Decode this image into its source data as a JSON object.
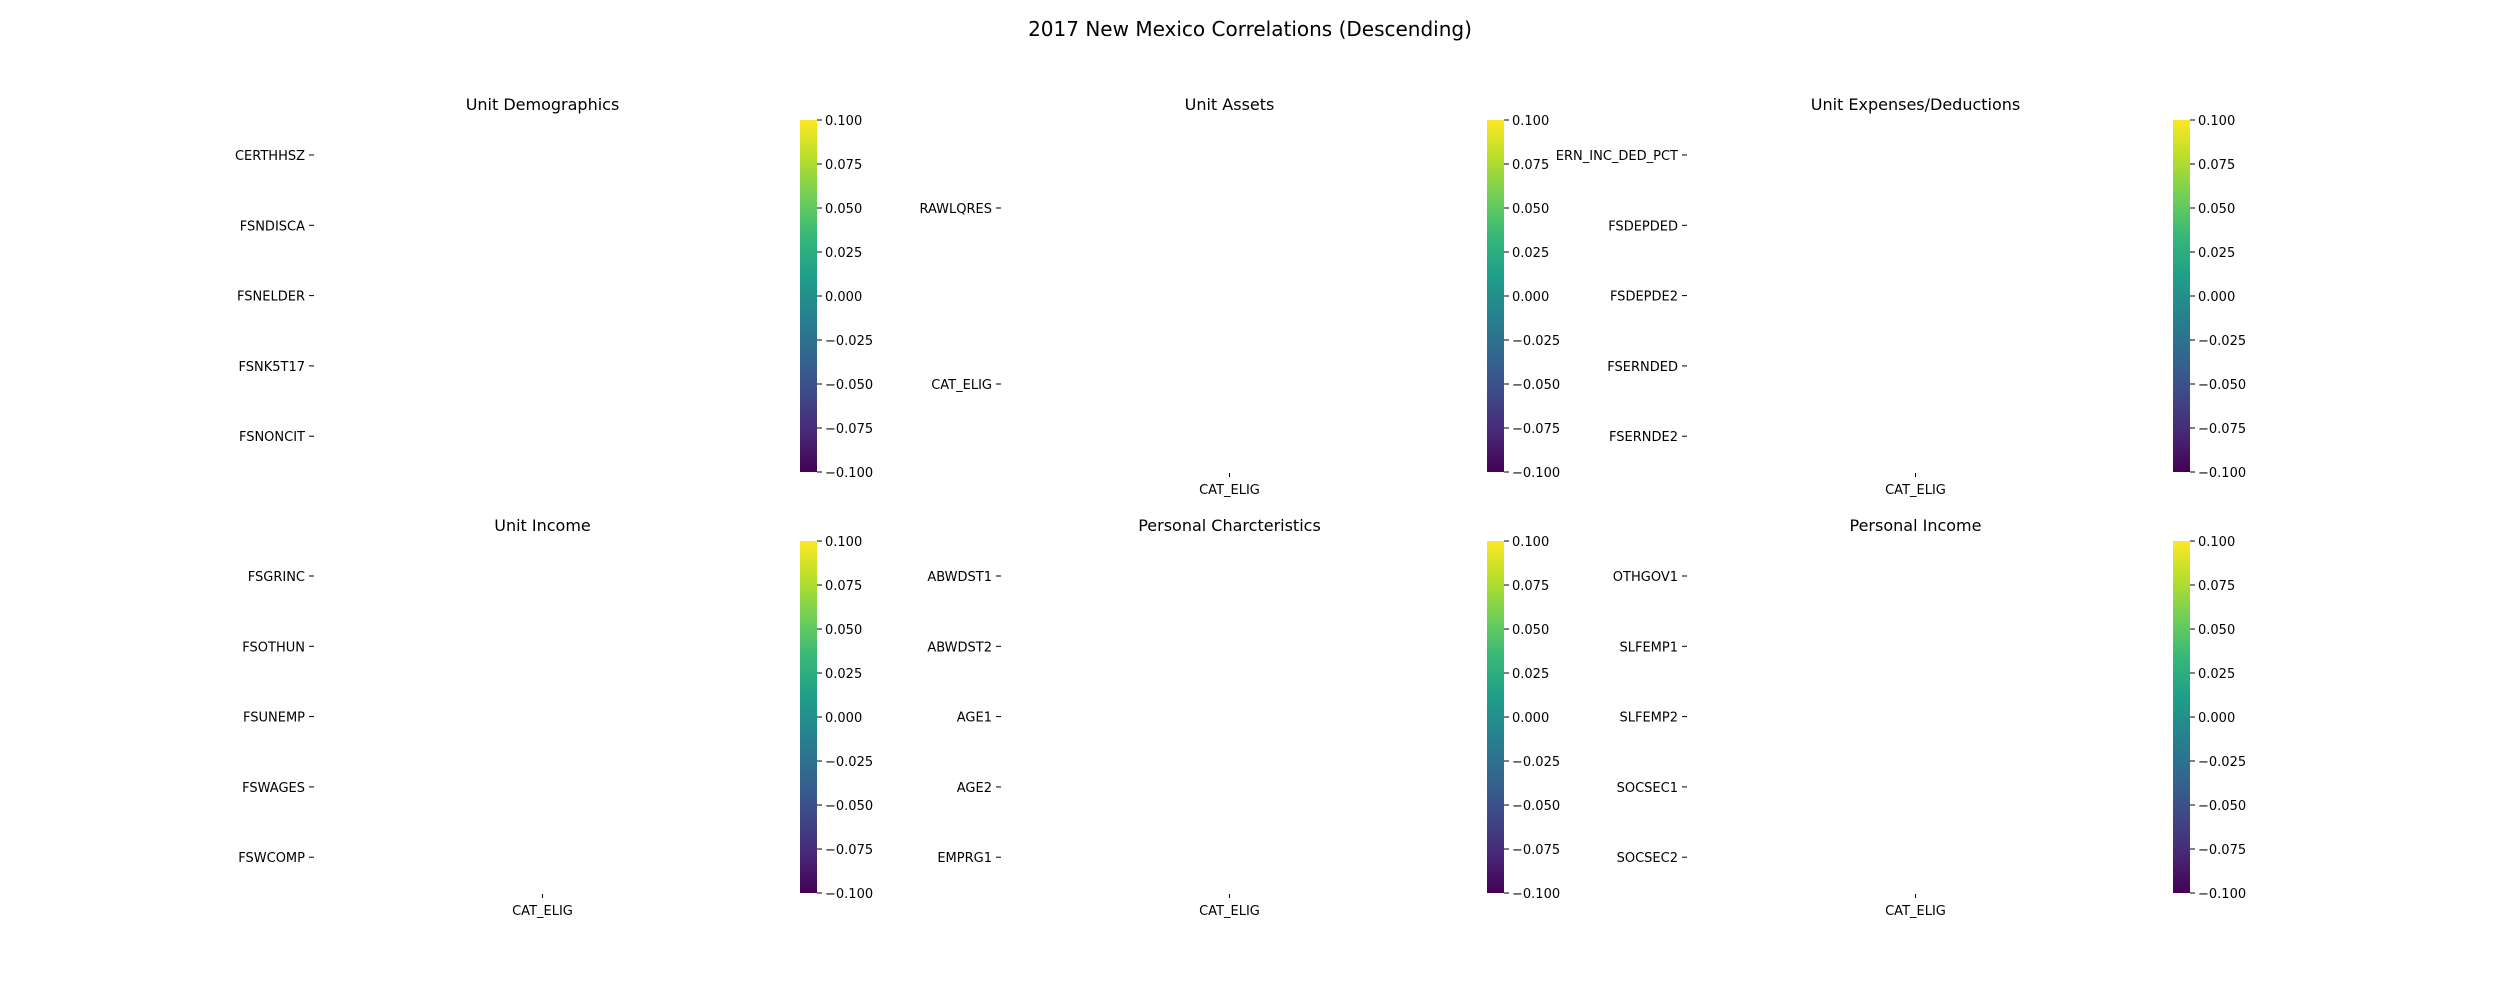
{
  "figure": {
    "title": "2017 New Mexico Correlations (Descending)"
  },
  "colormap": {
    "name": "viridis",
    "stops": [
      "#440154",
      "#482878",
      "#3e4989",
      "#31688e",
      "#26828e",
      "#1f9e89",
      "#35b779",
      "#6ece58",
      "#b5de2b",
      "#fde725"
    ]
  },
  "chart_data": [
    {
      "type": "heatmap",
      "title": "Unit Demographics",
      "rows": [
        "CERTHHSZ",
        "FSNDISCA",
        "FSNELDER",
        "FSNK5T17",
        "FSNONCIT"
      ],
      "columns": [],
      "values": [],
      "colorbar": {
        "range": [
          -0.1,
          0.1
        ],
        "ticks": [
          "0.100",
          "0.075",
          "0.050",
          "0.025",
          "0.000",
          "−0.025",
          "−0.050",
          "−0.075",
          "−0.100"
        ]
      }
    },
    {
      "type": "heatmap",
      "title": "Unit Assets",
      "rows": [
        "RAWLQRES",
        "CAT_ELIG"
      ],
      "columns": [
        "CAT_ELIG"
      ],
      "values": [],
      "colorbar": {
        "range": [
          -0.1,
          0.1
        ],
        "ticks": [
          "0.100",
          "0.075",
          "0.050",
          "0.025",
          "0.000",
          "−0.025",
          "−0.050",
          "−0.075",
          "−0.100"
        ]
      }
    },
    {
      "type": "heatmap",
      "title": "Unit Expenses/Deductions",
      "rows": [
        "ERN_INC_DED_PCT",
        "FSDEPDED",
        "FSDEPDE2",
        "FSERNDED",
        "FSERNDE2"
      ],
      "columns": [
        "CAT_ELIG"
      ],
      "values": [],
      "colorbar": {
        "range": [
          -0.1,
          0.1
        ],
        "ticks": [
          "0.100",
          "0.075",
          "0.050",
          "0.025",
          "0.000",
          "−0.025",
          "−0.050",
          "−0.075",
          "−0.100"
        ]
      }
    },
    {
      "type": "heatmap",
      "title": "Unit Income",
      "rows": [
        "FSGRINC",
        "FSOTHUN",
        "FSUNEMP",
        "FSWAGES",
        "FSWCOMP"
      ],
      "columns": [
        "CAT_ELIG"
      ],
      "values": [],
      "colorbar": {
        "range": [
          -0.1,
          0.1
        ],
        "ticks": [
          "0.100",
          "0.075",
          "0.050",
          "0.025",
          "0.000",
          "−0.025",
          "−0.050",
          "−0.075",
          "−0.100"
        ]
      }
    },
    {
      "type": "heatmap",
      "title": "Personal Charcteristics",
      "rows": [
        "ABWDST1",
        "ABWDST2",
        "AGE1",
        "AGE2",
        "EMPRG1"
      ],
      "columns": [
        "CAT_ELIG"
      ],
      "values": [],
      "colorbar": {
        "range": [
          -0.1,
          0.1
        ],
        "ticks": [
          "0.100",
          "0.075",
          "0.050",
          "0.025",
          "0.000",
          "−0.025",
          "−0.050",
          "−0.075",
          "−0.100"
        ]
      }
    },
    {
      "type": "heatmap",
      "title": "Personal Income",
      "rows": [
        "OTHGOV1",
        "SLFEMP1",
        "SLFEMP2",
        "SOCSEC1",
        "SOCSEC2"
      ],
      "columns": [
        "CAT_ELIG"
      ],
      "values": [],
      "colorbar": {
        "range": [
          -0.1,
          0.1
        ],
        "ticks": [
          "0.100",
          "0.075",
          "0.050",
          "0.025",
          "0.000",
          "−0.025",
          "−0.050",
          "−0.075",
          "−0.100"
        ]
      }
    }
  ]
}
